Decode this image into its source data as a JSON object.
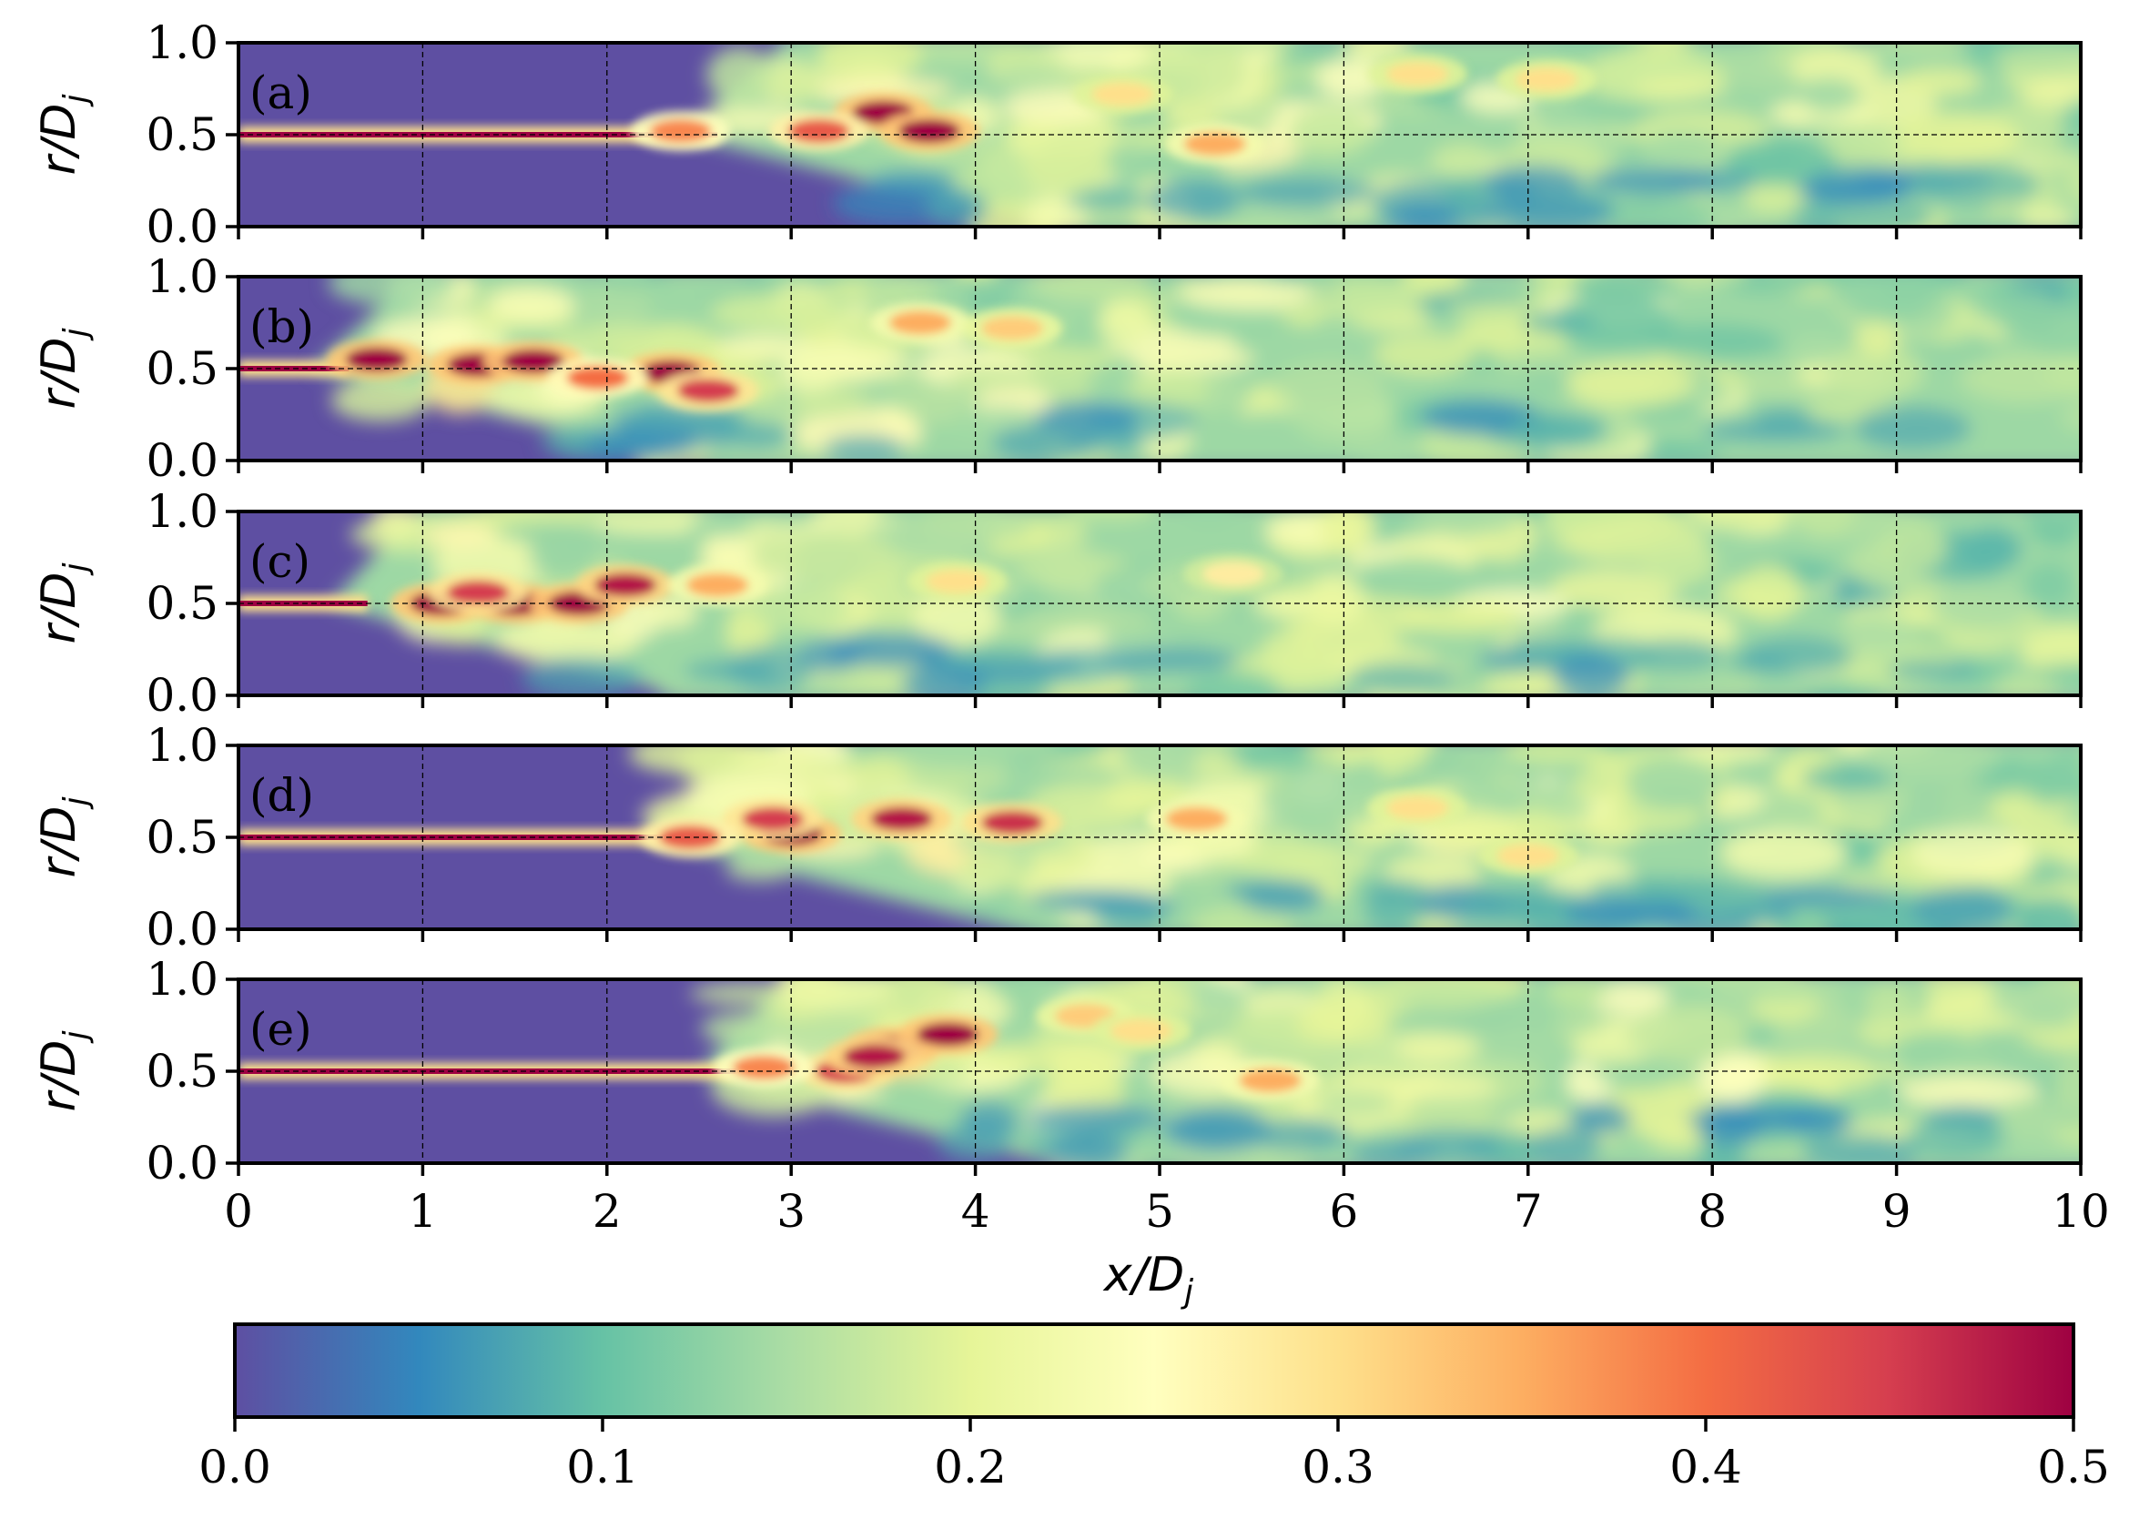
{
  "chart_data": {
    "type": "heatmap",
    "title": "",
    "colormap": "Spectral_r",
    "colors": [
      "#5e4fa2",
      "#3288bd",
      "#66c2a5",
      "#abdda4",
      "#e6f598",
      "#ffffbf",
      "#fee08b",
      "#fdae61",
      "#f46d43",
      "#d53e4f",
      "#9e0142"
    ],
    "xlabel_main": "x/D",
    "xlabel_sub": "j",
    "ylabel_main": "r/D",
    "ylabel_sub": "j",
    "xlim": [
      0,
      10
    ],
    "ylim": [
      0,
      1.0
    ],
    "xticks": [
      "0",
      "1",
      "2",
      "3",
      "4",
      "5",
      "6",
      "7",
      "8",
      "9",
      "10"
    ],
    "yticks": [
      "0.0",
      "0.5",
      "1.0"
    ],
    "colorbar": {
      "range": [
        0.0,
        0.5
      ],
      "ticks": [
        "0.0",
        "0.1",
        "0.2",
        "0.3",
        "0.4",
        "0.5"
      ]
    },
    "panels": [
      {
        "label": "(a)",
        "shear_layer_r": 0.5,
        "thin_layer_end_x": 2.6,
        "transition_x": 3.0,
        "hotspots": [
          [
            3.5,
            0.62,
            0.5
          ],
          [
            3.75,
            0.52,
            0.5
          ],
          [
            3.15,
            0.52,
            0.42
          ],
          [
            2.4,
            0.52,
            0.38
          ],
          [
            5.3,
            0.45,
            0.35
          ],
          [
            6.4,
            0.83,
            0.3
          ],
          [
            4.8,
            0.72,
            0.3
          ],
          [
            7.1,
            0.8,
            0.3
          ]
        ]
      },
      {
        "label": "(b)",
        "shear_layer_r": 0.5,
        "thin_layer_end_x": 0.6,
        "transition_x": 1.0,
        "hotspots": [
          [
            0.75,
            0.55,
            0.5
          ],
          [
            1.3,
            0.52,
            0.5
          ],
          [
            1.6,
            0.54,
            0.5
          ],
          [
            2.35,
            0.48,
            0.5
          ],
          [
            2.55,
            0.38,
            0.45
          ],
          [
            1.95,
            0.45,
            0.4
          ],
          [
            3.7,
            0.75,
            0.35
          ],
          [
            4.2,
            0.72,
            0.32
          ]
        ]
      },
      {
        "label": "(c)",
        "shear_layer_r": 0.5,
        "thin_layer_end_x": 0.7,
        "transition_x": 1.0,
        "hotspots": [
          [
            1.1,
            0.5,
            0.5
          ],
          [
            1.5,
            0.5,
            0.5
          ],
          [
            1.85,
            0.5,
            0.5
          ],
          [
            2.1,
            0.6,
            0.48
          ],
          [
            1.3,
            0.56,
            0.45
          ],
          [
            2.6,
            0.6,
            0.35
          ],
          [
            3.9,
            0.62,
            0.3
          ],
          [
            5.4,
            0.66,
            0.28
          ]
        ]
      },
      {
        "label": "(d)",
        "shear_layer_r": 0.5,
        "thin_layer_end_x": 2.4,
        "transition_x": 2.8,
        "hotspots": [
          [
            3.0,
            0.52,
            0.5
          ],
          [
            2.9,
            0.6,
            0.45
          ],
          [
            3.6,
            0.6,
            0.48
          ],
          [
            4.2,
            0.58,
            0.46
          ],
          [
            2.45,
            0.5,
            0.42
          ],
          [
            5.2,
            0.6,
            0.35
          ],
          [
            7.0,
            0.4,
            0.3
          ],
          [
            6.4,
            0.66,
            0.3
          ]
        ]
      },
      {
        "label": "(e)",
        "shear_layer_r": 0.5,
        "thin_layer_end_x": 2.7,
        "transition_x": 3.0,
        "hotspots": [
          [
            3.55,
            0.63,
            0.5
          ],
          [
            3.85,
            0.7,
            0.5
          ],
          [
            3.3,
            0.5,
            0.45
          ],
          [
            3.45,
            0.58,
            0.48
          ],
          [
            2.85,
            0.52,
            0.38
          ],
          [
            5.6,
            0.45,
            0.35
          ],
          [
            4.6,
            0.8,
            0.32
          ],
          [
            4.9,
            0.72,
            0.3
          ]
        ]
      }
    ]
  }
}
